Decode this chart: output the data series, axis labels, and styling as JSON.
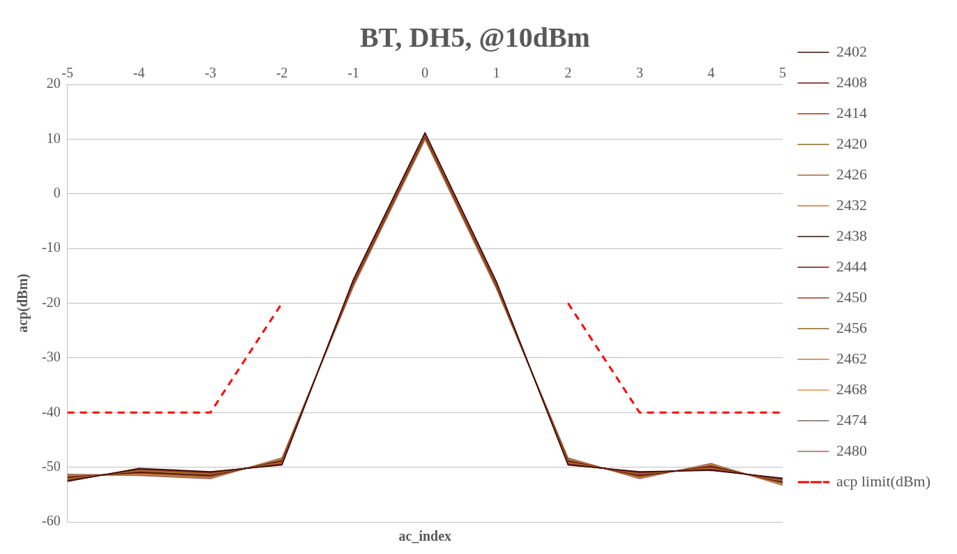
{
  "chart_data": {
    "type": "line",
    "title": "BT, DH5, @10dBm",
    "xlabel": "ac_index",
    "ylabel": "acp(dBm)",
    "x": [
      -5,
      -4,
      -3,
      -2,
      -1,
      0,
      1,
      2,
      3,
      4,
      5
    ],
    "xlim": [
      -5,
      5
    ],
    "xticks": [
      -5,
      -4,
      -3,
      -2,
      -1,
      0,
      1,
      2,
      3,
      4,
      5
    ],
    "ylim": [
      -60,
      20
    ],
    "yticks": [
      -60,
      -50,
      -40,
      -30,
      -20,
      -10,
      0,
      10,
      20
    ],
    "grid": "y",
    "legend": "right",
    "marker": "none",
    "series": [
      {
        "name": "2402",
        "color": "#3d0c0c",
        "values": [
          -52.6,
          -50.2,
          -50.8,
          -49.6,
          -15.6,
          11.2,
          -16.1,
          -49.6,
          -50.8,
          -50.6,
          -52.0
        ]
      },
      {
        "name": "2408",
        "color": "#6b1414",
        "values": [
          -52.5,
          -50.3,
          -50.9,
          -49.5,
          -15.7,
          11.1,
          -16.2,
          -49.5,
          -50.9,
          -50.5,
          -52.1
        ]
      },
      {
        "name": "2414",
        "color": "#8b3a2a",
        "values": [
          -52.4,
          -50.4,
          -51.0,
          -49.4,
          -15.8,
          11.0,
          -16.3,
          -49.4,
          -51.0,
          -50.4,
          -52.2
        ]
      },
      {
        "name": "2420",
        "color": "#8b6420",
        "values": [
          -52.3,
          -50.5,
          -51.1,
          -49.3,
          -15.9,
          10.9,
          -16.4,
          -49.3,
          -51.1,
          -50.3,
          -52.3
        ]
      },
      {
        "name": "2426",
        "color": "#a8642a",
        "values": [
          -52.2,
          -50.6,
          -51.2,
          -49.2,
          -16.0,
          10.8,
          -16.5,
          -49.2,
          -51.2,
          -50.2,
          -52.4
        ]
      },
      {
        "name": "2432",
        "color": "#c87a3c",
        "values": [
          -52.1,
          -50.7,
          -51.3,
          -49.1,
          -16.1,
          10.7,
          -16.6,
          -49.1,
          -51.3,
          -50.1,
          -52.5
        ]
      },
      {
        "name": "2438",
        "color": "#3d0c0c",
        "values": [
          -52.0,
          -50.8,
          -51.4,
          -49.0,
          -16.2,
          10.6,
          -16.7,
          -49.0,
          -51.4,
          -50.0,
          -52.6
        ]
      },
      {
        "name": "2444",
        "color": "#6b1414",
        "values": [
          -51.9,
          -50.9,
          -51.5,
          -48.9,
          -16.3,
          10.5,
          -16.8,
          -48.9,
          -51.5,
          -49.9,
          -52.7
        ]
      },
      {
        "name": "2450",
        "color": "#9a3a2c",
        "values": [
          -51.8,
          -51.0,
          -51.6,
          -48.8,
          -16.4,
          10.4,
          -16.9,
          -48.8,
          -51.6,
          -49.8,
          -52.8
        ]
      },
      {
        "name": "2456",
        "color": "#8b6420",
        "values": [
          -51.7,
          -51.1,
          -51.7,
          -48.7,
          -16.5,
          10.3,
          -17.0,
          -48.7,
          -51.7,
          -49.7,
          -52.9
        ]
      },
      {
        "name": "2462",
        "color": "#c87a30",
        "values": [
          -51.6,
          -51.2,
          -51.8,
          -48.6,
          -16.6,
          10.2,
          -17.1,
          -48.6,
          -51.8,
          -49.6,
          -53.0
        ]
      },
      {
        "name": "2468",
        "color": "#e8903c",
        "values": [
          -51.5,
          -51.3,
          -51.9,
          -48.5,
          -16.7,
          10.1,
          -17.2,
          -48.5,
          -51.9,
          -49.5,
          -53.1
        ]
      },
      {
        "name": "2474",
        "color": "#7d6464",
        "values": [
          -51.4,
          -51.4,
          -52.0,
          -48.4,
          -16.8,
          10.0,
          -17.3,
          -48.4,
          -52.0,
          -49.4,
          -53.2
        ]
      },
      {
        "name": "2480",
        "color": "#a06464",
        "values": [
          -51.3,
          -51.5,
          -52.1,
          -48.3,
          -16.9,
          9.9,
          -17.4,
          -48.3,
          -52.1,
          -49.3,
          -53.3
        ]
      },
      {
        "name": "acp limit(dBm)",
        "color": "#ff0000",
        "line_style": "dashed",
        "values": [
          -40,
          -40,
          -40,
          -20,
          null,
          null,
          null,
          -20,
          -40,
          -40,
          -40
        ]
      }
    ]
  }
}
